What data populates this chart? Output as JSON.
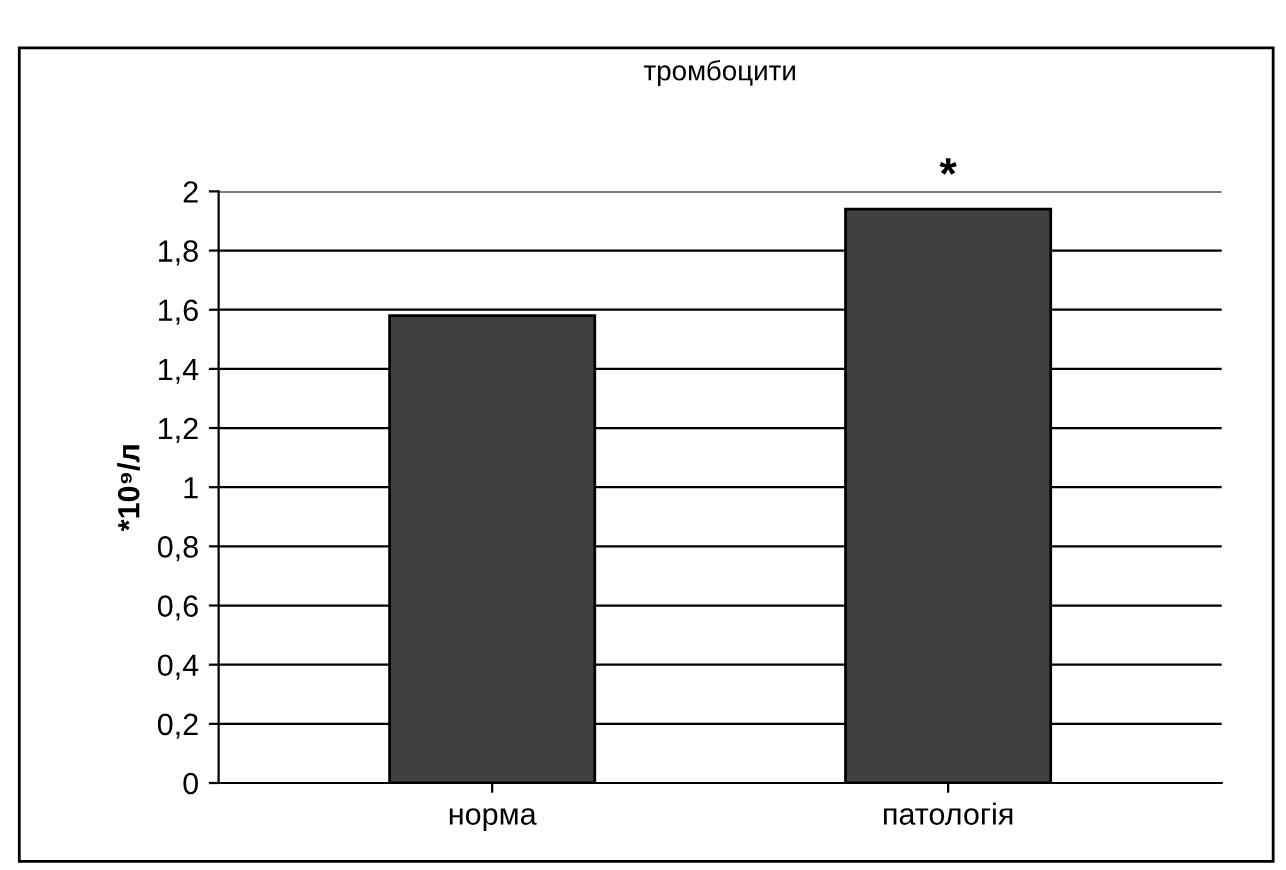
{
  "chart_data": {
    "type": "bar",
    "title": "тромбоцити",
    "ylabel": "*10⁹/л",
    "categories": [
      "норма",
      "патологія"
    ],
    "values": [
      1.58,
      1.94
    ],
    "color": "#404040",
    "ylim": [
      0,
      2
    ],
    "yticks": [
      0,
      {
        "value": 0.2,
        "label": "0,2"
      },
      {
        "value": 0.4,
        "label": "0,4"
      },
      {
        "value": 0.6,
        "label": "0,6"
      },
      {
        "value": 0.8,
        "label": "0,8"
      },
      1,
      {
        "value": 1.2,
        "label": "1,2"
      },
      {
        "value": 1.4,
        "label": "1,4"
      },
      {
        "value": 1.6,
        "label": "1,6"
      },
      {
        "value": 1.8,
        "label": "1,8"
      },
      2
    ],
    "grid": "y",
    "legend": false,
    "annotations": [
      {
        "text": "*",
        "x": "патологія",
        "y": 1.94
      }
    ]
  }
}
